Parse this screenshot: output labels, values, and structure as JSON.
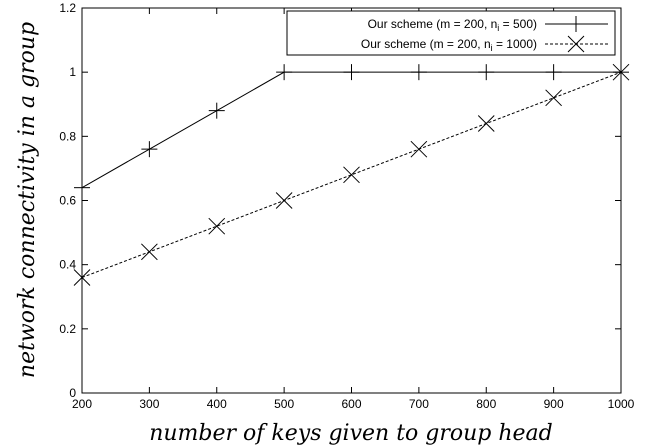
{
  "chart_data": {
    "type": "line",
    "title": "",
    "xlabel": "number of keys given to group head",
    "ylabel": "network connectivity in a group",
    "xlim": [
      200,
      1000
    ],
    "ylim": [
      0,
      1.2
    ],
    "xticks": [
      200,
      300,
      400,
      500,
      600,
      700,
      800,
      900,
      1000
    ],
    "yticks": [
      0,
      0.2,
      0.4,
      0.6,
      0.8,
      1,
      1.2
    ],
    "xtick_labels": [
      "200",
      "300",
      "400",
      "500",
      "600",
      "700",
      "800",
      "900",
      "1000"
    ],
    "ytick_labels": [
      "0",
      "0.2",
      "0.4",
      "0.6",
      "0.8",
      "1",
      "1.2"
    ],
    "grid": false,
    "legend_position": "top-right",
    "series": [
      {
        "name": "Our scheme (m = 200, n_i = 500)",
        "legend_main": "Our scheme (m = 200, n",
        "legend_sub": "i",
        "legend_tail": " = 500)",
        "marker": "plus",
        "line_style": "solid",
        "color": "#000000",
        "x": [
          200,
          300,
          400,
          500,
          600,
          700,
          800,
          900,
          1000
        ],
        "values": [
          0.64,
          0.76,
          0.88,
          1.0,
          1.0,
          1.0,
          1.0,
          1.0,
          1.0
        ]
      },
      {
        "name": "Our scheme (m = 200, n_i = 1000)",
        "legend_main": "Our scheme (m = 200, n",
        "legend_sub": "i",
        "legend_tail": " = 1000)",
        "marker": "cross",
        "line_style": "dashed",
        "color": "#000000",
        "x": [
          200,
          300,
          400,
          500,
          600,
          700,
          800,
          900,
          1000
        ],
        "values": [
          0.36,
          0.44,
          0.52,
          0.6,
          0.68,
          0.76,
          0.84,
          0.92,
          1.0
        ]
      }
    ]
  }
}
